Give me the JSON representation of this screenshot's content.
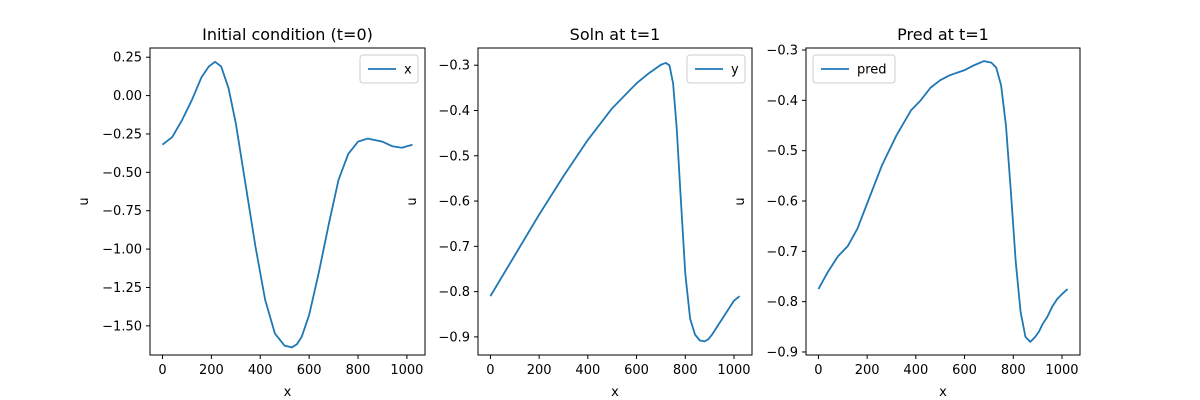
{
  "chart_data": [
    {
      "type": "line",
      "title": "Initial condition (t=0)",
      "xlabel": "x",
      "ylabel": "u",
      "xlim": [
        -51,
        1074
      ],
      "ylim": [
        -1.69,
        0.31
      ],
      "xticks": [
        0,
        200,
        400,
        600,
        800,
        1000
      ],
      "xtick_labels": [
        "0",
        "200",
        "400",
        "600",
        "800",
        "1000"
      ],
      "yticks": [
        0.25,
        0.0,
        -0.25,
        -0.5,
        -0.75,
        -1.0,
        -1.25,
        -1.5
      ],
      "ytick_labels": [
        "0.25",
        "0.00",
        "−0.25",
        "−0.50",
        "−0.75",
        "−1.00",
        "−1.25",
        "−1.50"
      ],
      "legend_position": "top-right",
      "series": [
        {
          "name": "x",
          "color": "#1f77b4",
          "x": [
            0,
            40,
            80,
            120,
            160,
            190,
            215,
            240,
            270,
            300,
            340,
            380,
            420,
            460,
            500,
            530,
            550,
            570,
            600,
            640,
            680,
            720,
            760,
            800,
            840,
            870,
            900,
            940,
            980,
            1000,
            1023
          ],
          "y": [
            -0.32,
            -0.27,
            -0.16,
            -0.03,
            0.12,
            0.19,
            0.22,
            0.19,
            0.05,
            -0.18,
            -0.58,
            -0.98,
            -1.33,
            -1.55,
            -1.63,
            -1.64,
            -1.62,
            -1.57,
            -1.43,
            -1.15,
            -0.84,
            -0.55,
            -0.38,
            -0.3,
            -0.28,
            -0.29,
            -0.3,
            -0.33,
            -0.34,
            -0.33,
            -0.32
          ]
        }
      ]
    },
    {
      "type": "line",
      "title": "Soln at t=1",
      "xlabel": "x",
      "ylabel": "u",
      "xlim": [
        -51,
        1074
      ],
      "ylim": [
        -0.94,
        -0.262
      ],
      "xticks": [
        0,
        200,
        400,
        600,
        800,
        1000
      ],
      "xtick_labels": [
        "0",
        "200",
        "400",
        "600",
        "800",
        "1000"
      ],
      "yticks": [
        -0.3,
        -0.4,
        -0.5,
        -0.6,
        -0.7,
        -0.8,
        -0.9
      ],
      "ytick_labels": [
        "−0.3",
        "−0.4",
        "−0.5",
        "−0.6",
        "−0.7",
        "−0.8",
        "−0.9"
      ],
      "legend_position": "top-right",
      "series": [
        {
          "name": "y",
          "color": "#1f77b4",
          "x": [
            0,
            100,
            200,
            300,
            400,
            500,
            600,
            650,
            700,
            720,
            735,
            750,
            765,
            780,
            800,
            820,
            840,
            860,
            880,
            895,
            910,
            940,
            970,
            1000,
            1023
          ],
          "y": [
            -0.81,
            -0.72,
            -0.63,
            -0.545,
            -0.465,
            -0.395,
            -0.34,
            -0.318,
            -0.299,
            -0.295,
            -0.3,
            -0.34,
            -0.44,
            -0.58,
            -0.76,
            -0.86,
            -0.895,
            -0.908,
            -0.91,
            -0.905,
            -0.895,
            -0.87,
            -0.845,
            -0.82,
            -0.81
          ]
        }
      ]
    },
    {
      "type": "line",
      "title": "Pred at t=1",
      "xlabel": "x",
      "ylabel": "u",
      "xlim": [
        -51,
        1074
      ],
      "ylim": [
        -0.906,
        -0.296
      ],
      "xticks": [
        0,
        200,
        400,
        600,
        800,
        1000
      ],
      "xtick_labels": [
        "0",
        "200",
        "400",
        "600",
        "800",
        "1000"
      ],
      "yticks": [
        -0.3,
        -0.4,
        -0.5,
        -0.6,
        -0.7,
        -0.8,
        -0.9
      ],
      "ytick_labels": [
        "−0.3",
        "−0.4",
        "−0.5",
        "−0.6",
        "−0.7",
        "−0.8",
        "−0.9"
      ],
      "legend_position": "top-left",
      "series": [
        {
          "name": "pred",
          "color": "#1f77b4",
          "x": [
            0,
            40,
            80,
            120,
            160,
            200,
            260,
            320,
            380,
            420,
            460,
            500,
            540,
            600,
            640,
            680,
            710,
            730,
            750,
            770,
            790,
            810,
            830,
            850,
            870,
            890,
            905,
            920,
            940,
            960,
            980,
            1000,
            1023
          ],
          "y": [
            -0.775,
            -0.74,
            -0.71,
            -0.69,
            -0.655,
            -0.605,
            -0.53,
            -0.47,
            -0.42,
            -0.4,
            -0.375,
            -0.36,
            -0.35,
            -0.34,
            -0.33,
            -0.322,
            -0.325,
            -0.335,
            -0.37,
            -0.45,
            -0.58,
            -0.72,
            -0.82,
            -0.87,
            -0.88,
            -0.87,
            -0.86,
            -0.845,
            -0.83,
            -0.81,
            -0.795,
            -0.785,
            -0.775
          ]
        }
      ]
    }
  ]
}
